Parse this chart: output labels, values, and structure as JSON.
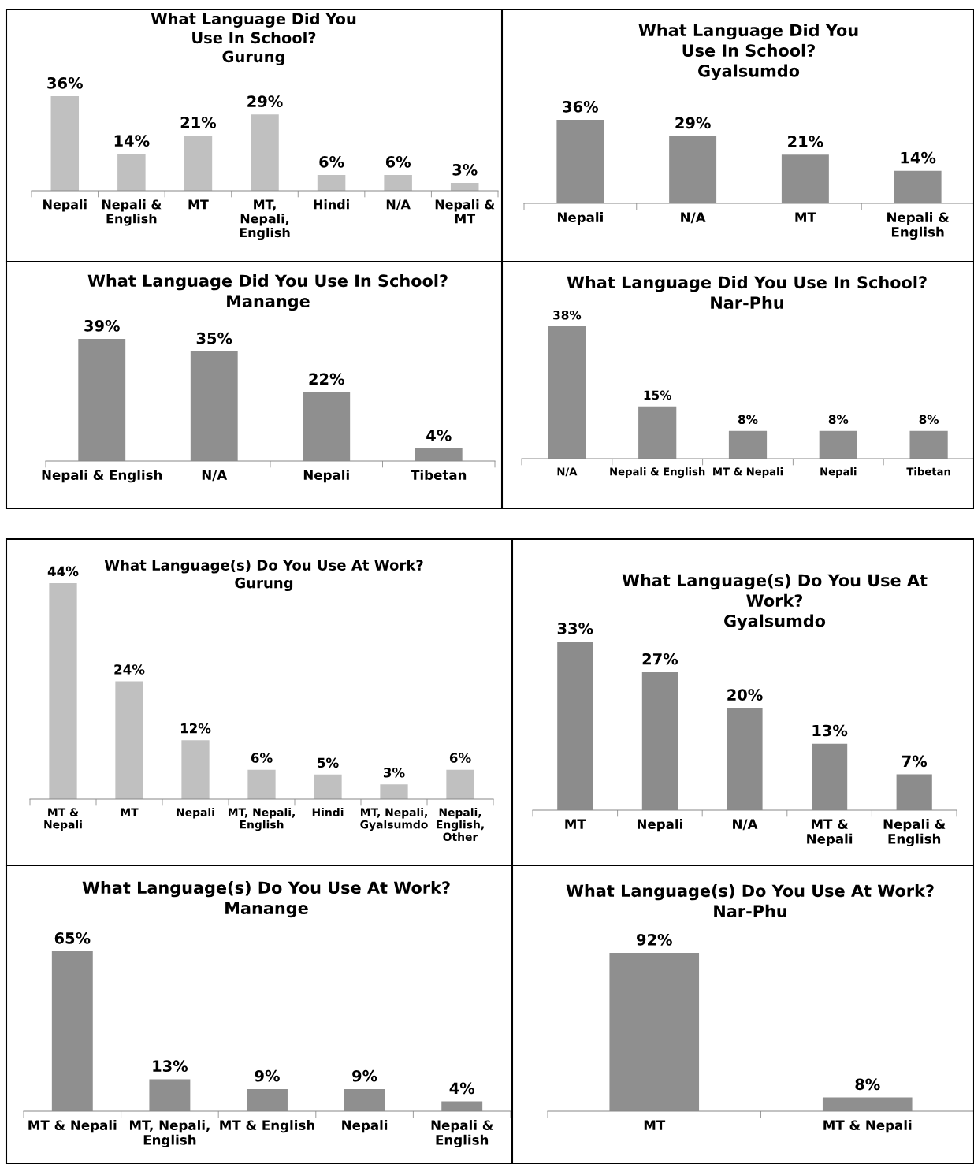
{
  "chart_data": [
    {
      "type": "bar",
      "title": "What Language Did You\nUse In School?\nGurung",
      "categories": [
        "Nepali",
        "Nepali &\nEnglish",
        "MT",
        "MT,\nNepali,\nEnglish",
        "Hindi",
        "N/A",
        "Nepali &\nMT"
      ],
      "values": [
        36,
        14,
        21,
        29,
        6,
        6,
        3
      ],
      "value_labels": [
        "36%",
        "14%",
        "21%",
        "29%",
        "6%",
        "6%",
        "3%"
      ],
      "color": "#c0c0c0"
    },
    {
      "type": "bar",
      "title": "What Language Did You\nUse In School?\nGyalsumdo",
      "categories": [
        "Nepali",
        "N/A",
        "MT",
        "Nepali &\nEnglish"
      ],
      "values": [
        36,
        29,
        21,
        14
      ],
      "value_labels": [
        "36%",
        "29%",
        "21%",
        "14%"
      ],
      "color": "#8f8f8f"
    },
    {
      "type": "bar",
      "title": "What Language Did You Use In School?\nManange",
      "categories": [
        "Nepali & English",
        "N/A",
        "Nepali",
        "Tibetan"
      ],
      "values": [
        39,
        35,
        22,
        4
      ],
      "value_labels": [
        "39%",
        "35%",
        "22%",
        "4%"
      ],
      "color": "#8f8f8f"
    },
    {
      "type": "bar",
      "title": "What Language Did You Use In School?\nNar-Phu",
      "categories": [
        "N/A",
        "Nepali & English",
        "MT & Nepali",
        "Nepali",
        "Tibetan"
      ],
      "values": [
        38,
        15,
        8,
        8,
        8
      ],
      "value_labels": [
        "38%",
        "15%",
        "8%",
        "8%",
        "8%"
      ],
      "color": "#8f8f8f"
    },
    {
      "type": "bar",
      "title": "What Language(s) Do You Use At Work?\nGurung",
      "categories": [
        "MT &\nNepali",
        "MT",
        "Nepali",
        "MT, Nepali,\nEnglish",
        "Hindi",
        "MT, Nepali,\nGyalsumdo",
        "Nepali,\nEnglish,\nOther"
      ],
      "values": [
        44,
        24,
        12,
        6,
        5,
        3,
        6
      ],
      "value_labels": [
        "44%",
        "24%",
        "12%",
        "6%",
        "5%",
        "3%",
        "6%"
      ],
      "color": "#c0c0c0"
    },
    {
      "type": "bar",
      "title": "What Language(s) Do You Use At\nWork?\nGyalsumdo",
      "categories": [
        "MT",
        "Nepali",
        "N/A",
        "MT &\nNepali",
        "Nepali &\nEnglish"
      ],
      "values": [
        33,
        27,
        20,
        13,
        7
      ],
      "value_labels": [
        "33%",
        "27%",
        "20%",
        "13%",
        "7%"
      ],
      "color": "#8c8c8c"
    },
    {
      "type": "bar",
      "title": "What Language(s) Do You Use At Work?\nManange",
      "categories": [
        "MT & Nepali",
        "MT, Nepali,\nEnglish",
        "MT & English",
        "Nepali",
        "Nepali &\nEnglish"
      ],
      "values": [
        65,
        13,
        9,
        9,
        4
      ],
      "value_labels": [
        "65%",
        "13%",
        "9%",
        "9%",
        "4%"
      ],
      "color": "#8f8f8f"
    },
    {
      "type": "bar",
      "title": "What Language(s) Do You Use At Work?\nNar-Phu",
      "categories": [
        "MT",
        "MT & Nepali"
      ],
      "values": [
        92,
        8
      ],
      "value_labels": [
        "92%",
        "8%"
      ],
      "color": "#8f8f8f"
    }
  ]
}
